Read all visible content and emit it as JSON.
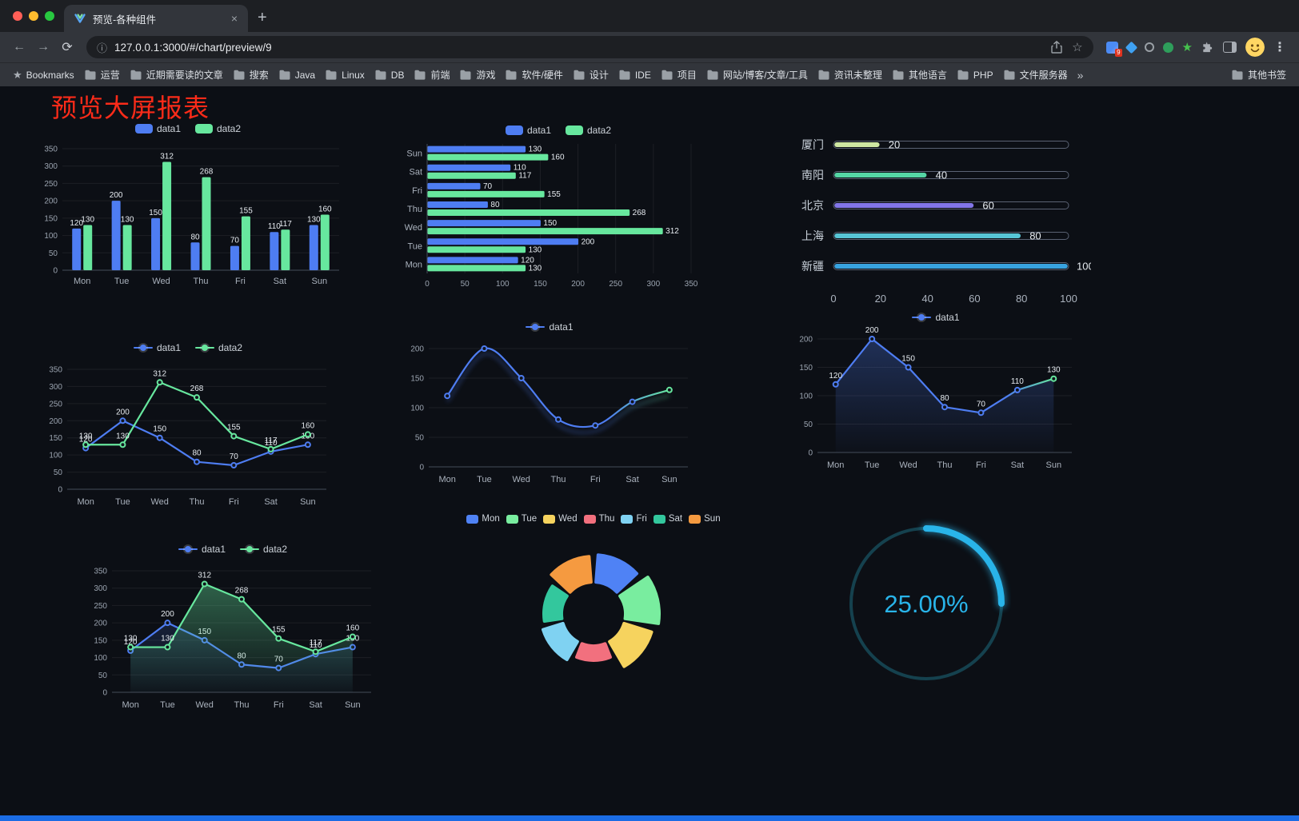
{
  "browser": {
    "tab": {
      "title": "预览-各种组件"
    },
    "address": {
      "url": "127.0.0.1:3000/#/chart/preview/9"
    },
    "badge": "9",
    "bookmarks_bar": {
      "first": "Bookmarks",
      "folders": [
        "运营",
        "近期需要读的文章",
        "搜索",
        "Java",
        "Linux",
        "DB",
        "前端",
        "游戏",
        "软件/硬件",
        "设计",
        "IDE",
        "项目",
        "网站/博客/文章/工具",
        "资讯未整理",
        "其他语言",
        "PHP",
        "文件服务器"
      ],
      "overflow": "»",
      "other": "其他书签"
    }
  },
  "page": {
    "title": "预览大屏报表"
  },
  "colors": {
    "data1": "#4e7df2",
    "data2": "#67e79e",
    "accent_red": "#fb2b19",
    "gauge": "#29b4e9",
    "background": "#0c0f15"
  },
  "chart_data": [
    {
      "id": "bar-vertical",
      "type": "bar",
      "categories": [
        "Mon",
        "Tue",
        "Wed",
        "Thu",
        "Fri",
        "Sat",
        "Sun"
      ],
      "series": [
        {
          "name": "data1",
          "color": "#4e7df2",
          "values": [
            120,
            200,
            150,
            80,
            70,
            110,
            130
          ]
        },
        {
          "name": "data2",
          "color": "#67e79e",
          "values": [
            130,
            130,
            312,
            268,
            155,
            117,
            160
          ]
        }
      ],
      "ylim": [
        0,
        350
      ],
      "ytick": 50,
      "legend_position": "top",
      "grid": true
    },
    {
      "id": "bar-horizontal",
      "type": "hbar",
      "categories": [
        "Mon",
        "Tue",
        "Wed",
        "Thu",
        "Fri",
        "Sat",
        "Sun"
      ],
      "series": [
        {
          "name": "data1",
          "color": "#4e7df2",
          "values": [
            120,
            200,
            150,
            80,
            70,
            110,
            130
          ]
        },
        {
          "name": "data2",
          "color": "#67e79e",
          "values": [
            130,
            130,
            312,
            268,
            155,
            117,
            160
          ]
        }
      ],
      "xlim": [
        0,
        350
      ],
      "xtick": 50,
      "legend_position": "top",
      "grid": true
    },
    {
      "id": "progress-cities",
      "type": "progress",
      "items": [
        {
          "label": "厦门",
          "value": 20,
          "color": "#cfe7a2"
        },
        {
          "label": "南阳",
          "value": 40,
          "color": "#55d5a5"
        },
        {
          "label": "北京",
          "value": 60,
          "color": "#8276e8"
        },
        {
          "label": "上海",
          "value": 80,
          "color": "#57c5d6"
        },
        {
          "label": "新疆",
          "value": 100,
          "color": "#38a3e0"
        }
      ],
      "xticks": [
        0,
        20,
        40,
        60,
        80,
        100
      ],
      "xlim": [
        0,
        100
      ]
    },
    {
      "id": "line-dual",
      "type": "line",
      "categories": [
        "Mon",
        "Tue",
        "Wed",
        "Thu",
        "Fri",
        "Sat",
        "Sun"
      ],
      "series": [
        {
          "name": "data1",
          "color": "#4e7df2",
          "values": [
            120,
            200,
            150,
            80,
            70,
            110,
            130
          ],
          "labels": true
        },
        {
          "name": "data2",
          "color": "#67e79e",
          "values": [
            130,
            130,
            312,
            268,
            155,
            117,
            160
          ],
          "labels": true
        }
      ],
      "ylim": [
        0,
        350
      ],
      "ytick": 50,
      "legend_position": "top",
      "grid": true
    },
    {
      "id": "line-gradient",
      "type": "line",
      "categories": [
        "Mon",
        "Tue",
        "Wed",
        "Thu",
        "Fri",
        "Sat",
        "Sun"
      ],
      "series": [
        {
          "name": "data1",
          "color": "#4e7df2",
          "gradient": [
            [
              0,
              "#4e7df2"
            ],
            [
              0.72,
              "#4e7df2"
            ],
            [
              1,
              "#67e79e"
            ]
          ],
          "values": [
            120,
            200,
            150,
            80,
            70,
            110,
            130
          ],
          "smooth": true,
          "shadow": true,
          "labels": false
        }
      ],
      "ylim": [
        0,
        200
      ],
      "ytick": 50,
      "legend_position": "top",
      "grid": true
    },
    {
      "id": "line-area",
      "type": "line",
      "categories": [
        "Mon",
        "Tue",
        "Wed",
        "Thu",
        "Fri",
        "Sat",
        "Sun"
      ],
      "series": [
        {
          "name": "data1",
          "color": "#4e7df2",
          "gradient": [
            [
              0,
              "#4e7df2"
            ],
            [
              0.78,
              "#4e7df2"
            ],
            [
              1,
              "#67e79e"
            ]
          ],
          "values": [
            120,
            200,
            150,
            80,
            70,
            110,
            130
          ],
          "labels": true,
          "area": true,
          "area_opacity": 0.3
        }
      ],
      "ylim": [
        0,
        200
      ],
      "ytick": 50,
      "legend_position": "top",
      "grid": true
    },
    {
      "id": "line-dual-area",
      "type": "line",
      "categories": [
        "Mon",
        "Tue",
        "Wed",
        "Thu",
        "Fri",
        "Sat",
        "Sun"
      ],
      "series": [
        {
          "name": "data1",
          "color": "#4e7df2",
          "values": [
            120,
            200,
            150,
            80,
            70,
            110,
            130
          ],
          "labels": true,
          "area": true,
          "area_opacity": 0.16
        },
        {
          "name": "data2",
          "color": "#67e79e",
          "values": [
            130,
            130,
            312,
            268,
            155,
            117,
            160
          ],
          "labels": true,
          "area": true,
          "area_opacity": 0.38
        }
      ],
      "ylim": [
        0,
        350
      ],
      "ytick": 50,
      "legend_position": "top",
      "grid": true
    },
    {
      "id": "donut-week",
      "type": "donut",
      "inner_radius": 40,
      "equal_angles": true,
      "segments": [
        {
          "name": "Mon",
          "color": "#4f82f5",
          "outer": 74
        },
        {
          "name": "Tue",
          "color": "#79ed9f",
          "outer": 82
        },
        {
          "name": "Wed",
          "color": "#f6d35e",
          "outer": 76
        },
        {
          "name": "Thu",
          "color": "#f2707e",
          "outer": 58
        },
        {
          "name": "Fri",
          "color": "#7fd2f2",
          "outer": 66
        },
        {
          "name": "Sat",
          "color": "#33c79d",
          "outer": 62
        },
        {
          "name": "Sun",
          "color": "#f59a40",
          "outer": 72
        }
      ],
      "legend_position": "top"
    },
    {
      "id": "gauge-percent",
      "type": "gauge",
      "value": 25,
      "max": 100,
      "display": "25.00%",
      "color": "#29b4e9",
      "track_color": "#15414e"
    }
  ]
}
